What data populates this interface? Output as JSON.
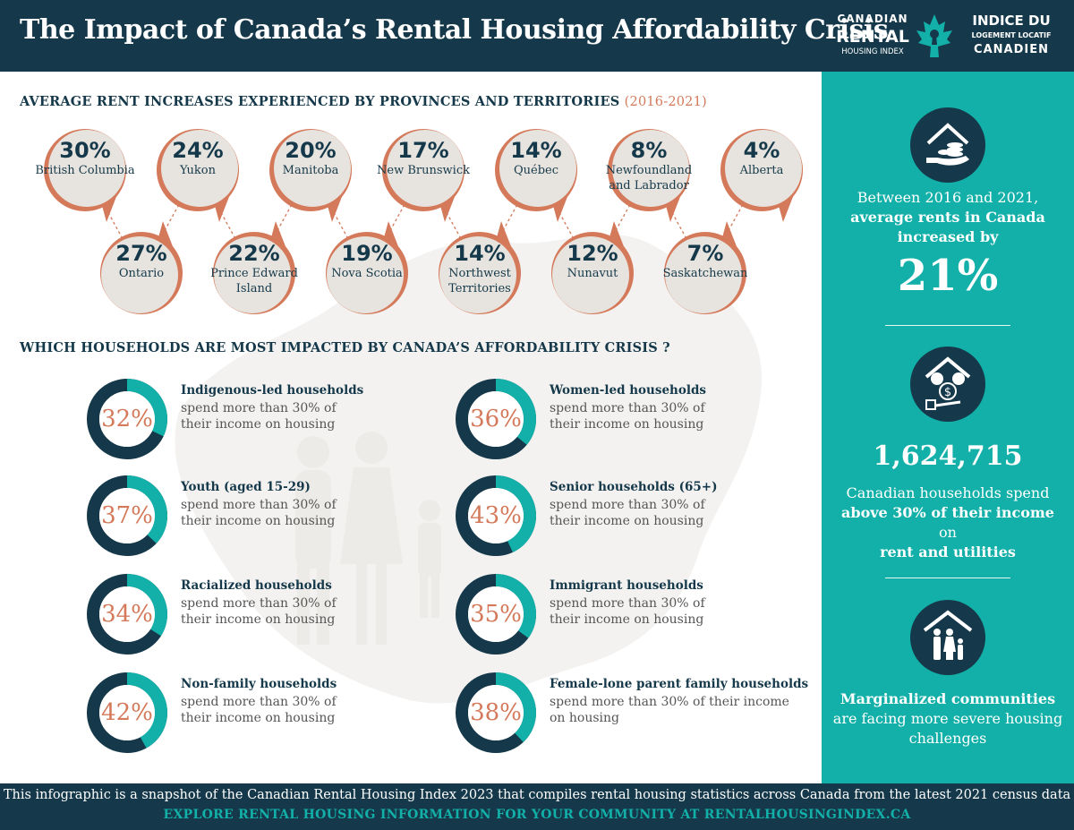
{
  "header": {
    "title": "The Impact of Canada’s Rental Housing Affordability Crisis"
  },
  "logo": {
    "en_line1": "CANADIAN",
    "en_line2": "RENTAL",
    "en_line3": "HOUSING INDEX",
    "fr_line1": "INDICE DU",
    "fr_line2": "LOGEMENT LOCATIF",
    "fr_line3": "CANADIEN"
  },
  "colors": {
    "navy": "#15394a",
    "teal": "#12b0a8",
    "rust": "#d4795a",
    "bubble": "#e7e4df"
  },
  "rent_section": {
    "title": "AVERAGE RENT INCREASES EXPERIENCED BY PROVINCES AND TERRITORIES",
    "period": "(2016-2021)"
  },
  "households_section": {
    "title": "WHICH HOUSEHOLDS ARE MOST IMPACTED BY CANADA’S AFFORDABILITY CRISIS ?"
  },
  "chart_data": [
    {
      "type": "bubble-list",
      "title": "AVERAGE RENT INCREASES EXPERIENCED BY PROVINCES AND TERRITORIES (2016-2021)",
      "unit": "%",
      "items": [
        {
          "region": "British Columbia",
          "value": 30,
          "label": "30%",
          "name_lines": [
            "British Columbia"
          ]
        },
        {
          "region": "Ontario",
          "value": 27,
          "label": "27%",
          "name_lines": [
            "Ontario"
          ]
        },
        {
          "region": "Yukon",
          "value": 24,
          "label": "24%",
          "name_lines": [
            "Yukon"
          ]
        },
        {
          "region": "Prince Edward Island",
          "value": 22,
          "label": "22%",
          "name_lines": [
            "Prince Edward",
            "Island"
          ]
        },
        {
          "region": "Manitoba",
          "value": 20,
          "label": "20%",
          "name_lines": [
            "Manitoba"
          ]
        },
        {
          "region": "Nova Scotia",
          "value": 19,
          "label": "19%",
          "name_lines": [
            "Nova Scotia"
          ]
        },
        {
          "region": "New Brunswick",
          "value": 17,
          "label": "17%",
          "name_lines": [
            "New Brunswick"
          ]
        },
        {
          "region": "Northwest Territories",
          "value": 14,
          "label": "14%",
          "name_lines": [
            "Northwest",
            "Territories"
          ]
        },
        {
          "region": "Québec",
          "value": 14,
          "label": "14%",
          "name_lines": [
            "Québec"
          ]
        },
        {
          "region": "Nunavut",
          "value": 12,
          "label": "12%",
          "name_lines": [
            "Nunavut"
          ]
        },
        {
          "region": "Newfoundland and Labrador",
          "value": 8,
          "label": "8%",
          "name_lines": [
            "Newfoundland",
            "and Labrador"
          ]
        },
        {
          "region": "Saskatchewan",
          "value": 7,
          "label": "7%",
          "name_lines": [
            "Saskatchewan"
          ]
        },
        {
          "region": "Alberta",
          "value": 4,
          "label": "4%",
          "name_lines": [
            "Alberta"
          ]
        }
      ]
    },
    {
      "type": "donut",
      "title": "WHICH HOUSEHOLDS ARE MOST IMPACTED BY CANADA’S AFFORDABILITY CRISIS ?",
      "unit": "%",
      "items": [
        {
          "group": "Indigenous-led households",
          "value": 32,
          "label": "32%",
          "desc": "spend more than 30% of their income on housing"
        },
        {
          "group": "Women-led households",
          "value": 36,
          "label": "36%",
          "desc": "spend more than 30% of their income on housing"
        },
        {
          "group": "Youth (aged 15-29)",
          "value": 37,
          "label": "37%",
          "desc": "spend more than 30% of their income on housing"
        },
        {
          "group": "Senior households (65+)",
          "value": 43,
          "label": "43%",
          "desc": "spend more than 30% of their income on housing"
        },
        {
          "group": "Racialized households",
          "value": 34,
          "label": "34%",
          "desc": "spend more than 30% of their income on housing"
        },
        {
          "group": "Immigrant households",
          "value": 35,
          "label": "35%",
          "desc": "spend more than 30% of their income on housing"
        },
        {
          "group": "Non-family households",
          "value": 42,
          "label": "42%",
          "desc": "spend more than 30% of their income on housing"
        },
        {
          "group": "Female-lone parent  family households",
          "value": 38,
          "label": "38%",
          "desc": "spend more than 30% of their income on housing"
        }
      ]
    }
  ],
  "sidebar": {
    "stat1_line1": "Between 2016 and 2021,",
    "stat1_line2": "average rents in Canada",
    "stat1_line3": "increased by",
    "stat1_value": "21%",
    "stat2_value": "1,624,715",
    "stat2_line1": "Canadian households spend",
    "stat2_line2": "above 30% of their income",
    "stat2_line2b": " on",
    "stat2_line3": "rent and utilities",
    "stat3_line1": "Marginalized communities",
    "stat3_line2": "are facing more severe housing",
    "stat3_line3": "challenges",
    "icons": [
      "house-coins-hand-icon",
      "house-utilities-dollar-icon",
      "family-under-roof-icon"
    ]
  },
  "footer": {
    "line1": "This infographic is a snapshot of the Canadian Rental Housing Index 2023 that compiles rental housing statistics across Canada from the latest 2021 census data",
    "line2": "EXPLORE RENTAL HOUSING INFORMATION FOR YOUR COMMUNITY AT RENTALHOUSINGINDEX.CA"
  }
}
